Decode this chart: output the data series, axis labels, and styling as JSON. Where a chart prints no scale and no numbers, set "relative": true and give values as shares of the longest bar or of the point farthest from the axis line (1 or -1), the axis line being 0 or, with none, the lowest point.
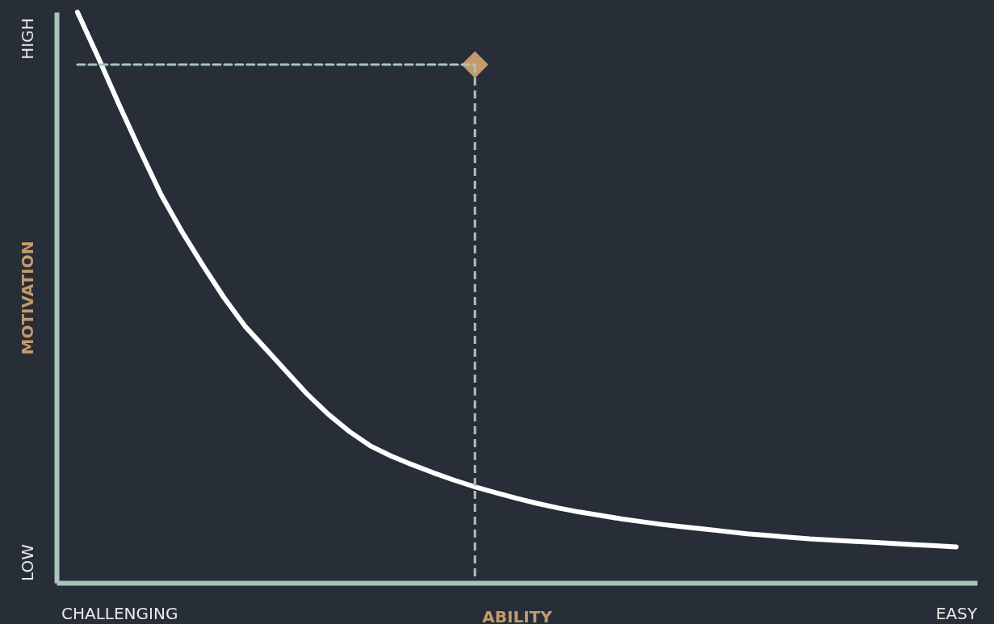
{
  "chart_data": {
    "type": "line",
    "xlabel": "ABILITY",
    "ylabel": "MOTIVATION",
    "relative": true,
    "categories": [
      null,
      null,
      "CHALLENGING",
      null,
      null,
      null,
      null,
      null,
      null,
      null,
      null,
      null,
      null,
      null,
      null,
      null,
      null,
      null,
      null,
      null,
      null,
      null,
      null,
      null,
      null,
      null,
      null,
      null,
      null,
      null,
      null,
      null,
      null,
      null,
      null,
      null,
      null,
      null,
      null,
      null,
      null,
      null,
      "EASY"
    ],
    "annotations": [
      "HIGH",
      "LOW"
    ],
    "series": [
      {
        "color": "#ffffff",
        "values": [
          1,
          0.92,
          0.837,
          0.757,
          0.68,
          0.615,
          0.556,
          0.5,
          0.45,
          0.41,
          0.37,
          0.33,
          0.295,
          0.265,
          0.24,
          0.222,
          0.207,
          0.193,
          0.18,
          0.168,
          0.158,
          0.148,
          0.139,
          0.131,
          0.124,
          0.118,
          0.112,
          0.107,
          0.102,
          0.098,
          0.094,
          0.09,
          0.086,
          0.083,
          0.08,
          0.077,
          0.075,
          0.073,
          0.071,
          0.069,
          0.067,
          0.065,
          0.063
        ]
      },
      {
        "color": "#a9c4b8",
        "line_style": "dashed",
        "values": [
          0.908,
          0.908,
          0.908,
          0.908,
          0.908,
          0.908,
          0.908,
          0.908,
          0.908,
          0.908,
          0.908,
          0.908,
          0.908,
          0.908,
          0.908,
          0.908,
          0.908,
          0.908,
          0.908,
          0.908,
          null,
          null,
          null,
          null,
          null,
          null,
          null,
          null,
          null,
          null,
          null,
          null,
          null,
          null,
          null,
          null,
          null,
          null,
          null,
          null,
          null,
          null,
          null
        ]
      },
      {
        "type": "scatter",
        "color": "#c49a6c",
        "marker": "diamond",
        "line_style": "dashed",
        "values": [
          null,
          null,
          null,
          null,
          null,
          null,
          null,
          null,
          null,
          null,
          null,
          null,
          null,
          null,
          null,
          null,
          null,
          null,
          null,
          0.908,
          null,
          null,
          null,
          null,
          null,
          null,
          null,
          null,
          null,
          null,
          null,
          null,
          null,
          null,
          null,
          null,
          null,
          null,
          null,
          null,
          null,
          null,
          null
        ]
      }
    ]
  }
}
